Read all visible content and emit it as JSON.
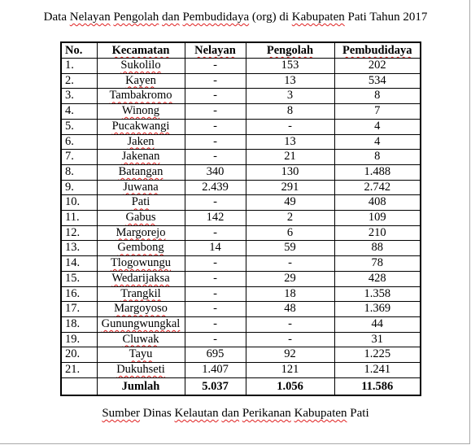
{
  "title_parts": {
    "p1": "Data",
    "p2": "Nelayan",
    "p3": "Pengolah",
    "p4": "dan",
    "p5": "Pembudidaya",
    "p6": "(org) di",
    "p7": "Kabupaten",
    "p8": "Pati Tahun 2017"
  },
  "table": {
    "headers": {
      "no": "No.",
      "kecamatan": "Kecamatan",
      "nelayan": "Nelayan",
      "pengolah": "Pengolah",
      "pembudidaya": "Pembudidaya"
    },
    "rows": [
      {
        "no": "1.",
        "kecamatan": "Sukolilo",
        "nelayan": "-",
        "pengolah": "153",
        "pembudidaya": "202"
      },
      {
        "no": "2.",
        "kecamatan": "Kayen",
        "nelayan": "-",
        "pengolah": "13",
        "pembudidaya": "534"
      },
      {
        "no": "3.",
        "kecamatan": "Tambakromo",
        "nelayan": "-",
        "pengolah": "3",
        "pembudidaya": "8"
      },
      {
        "no": "4.",
        "kecamatan": "Winong",
        "nelayan": "-",
        "pengolah": "8",
        "pembudidaya": "7"
      },
      {
        "no": "5.",
        "kecamatan": "Pucakwangi",
        "nelayan": "-",
        "pengolah": "-",
        "pembudidaya": "4"
      },
      {
        "no": "6.",
        "kecamatan": "Jaken",
        "nelayan": "-",
        "pengolah": "13",
        "pembudidaya": "4"
      },
      {
        "no": "7.",
        "kecamatan": "Jakenan",
        "nelayan": "-",
        "pengolah": "21",
        "pembudidaya": "8"
      },
      {
        "no": "8.",
        "kecamatan": "Batangan",
        "nelayan": "340",
        "pengolah": "130",
        "pembudidaya": "1.488"
      },
      {
        "no": "9.",
        "kecamatan": "Juwana",
        "nelayan": "2.439",
        "pengolah": "291",
        "pembudidaya": "2.742"
      },
      {
        "no": "10.",
        "kecamatan": "Pati",
        "nelayan": "-",
        "pengolah": "49",
        "pembudidaya": "408"
      },
      {
        "no": "11.",
        "kecamatan": "Gabus",
        "nelayan": "142",
        "pengolah": "2",
        "pembudidaya": "109"
      },
      {
        "no": "12.",
        "kecamatan": "Margorejo",
        "nelayan": "-",
        "pengolah": "6",
        "pembudidaya": "210"
      },
      {
        "no": "13.",
        "kecamatan": "Gembong",
        "nelayan": "14",
        "pengolah": "59",
        "pembudidaya": "88"
      },
      {
        "no": "14.",
        "kecamatan": "Tlogowungu",
        "nelayan": "-",
        "pengolah": "-",
        "pembudidaya": "78"
      },
      {
        "no": "15.",
        "kecamatan": "Wedarijaksa",
        "nelayan": "-",
        "pengolah": "29",
        "pembudidaya": "428"
      },
      {
        "no": "16.",
        "kecamatan": "Trangkil",
        "nelayan": "-",
        "pengolah": "18",
        "pembudidaya": "1.358"
      },
      {
        "no": "17.",
        "kecamatan": "Margoyoso",
        "nelayan": "-",
        "pengolah": "48",
        "pembudidaya": "1.369"
      },
      {
        "no": "18.",
        "kecamatan": "Gunungwungkal",
        "nelayan": "-",
        "pengolah": "-",
        "pembudidaya": "44"
      },
      {
        "no": "19.",
        "kecamatan": "Cluwak",
        "nelayan": "-",
        "pengolah": "-",
        "pembudidaya": "31"
      },
      {
        "no": "20.",
        "kecamatan": "Tayu",
        "nelayan": "695",
        "pengolah": "92",
        "pembudidaya": "1.225"
      },
      {
        "no": "21.",
        "kecamatan": "Dukuhseti",
        "nelayan": "1.407",
        "pengolah": "121",
        "pembudidaya": "1.241"
      }
    ],
    "total": {
      "label": "Jumlah",
      "nelayan": "5.037",
      "pengolah": "1.056",
      "pembudidaya": "11.586"
    }
  },
  "source_parts": {
    "s1": "Sumber",
    "s2": "Dinas",
    "s3": "Kelautan",
    "s4": "dan",
    "s5": "Perikanan",
    "s6": "Kabupaten",
    "s7": "Pati"
  },
  "spellcheck_underline_color": "#e02020"
}
